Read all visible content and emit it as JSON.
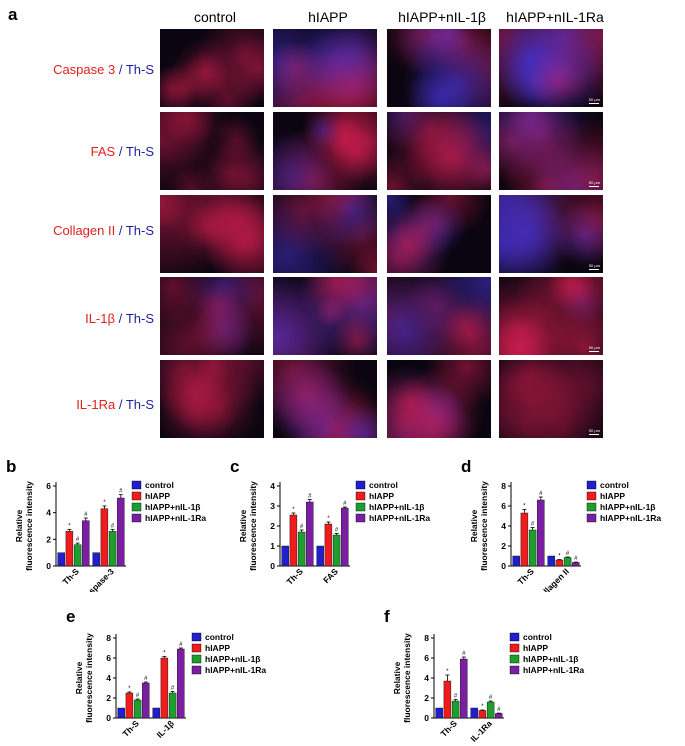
{
  "panel_a": {
    "letter": "a",
    "columns": [
      "control",
      "hIAPP",
      "hIAPP+nIL-1β",
      "hIAPP+nIL-1Ra"
    ],
    "rows": [
      {
        "stain": "Caspase 3",
        "sep": " / ",
        "counter": "Th-S"
      },
      {
        "stain": "FAS",
        "sep": " / ",
        "counter": "Th-S"
      },
      {
        "stain": "Collagen II",
        "sep": " / ",
        "counter": "Th-S"
      },
      {
        "stain": "IL-1β",
        "sep": " / ",
        "counter": "Th-S"
      },
      {
        "stain": "IL-1Ra",
        "sep": " / ",
        "counter": "Th-S"
      }
    ],
    "scale_bar_label": "50 μm",
    "colors": {
      "stain": "#e0201e",
      "counterstain": "#1f1f9e",
      "tile_bg": "#0a0510"
    }
  },
  "series_colors": [
    "#1f1fcc",
    "#ee1c1c",
    "#1e9e2e",
    "#7b1fa2"
  ],
  "chart_data": [
    {
      "panel": "b",
      "type": "bar",
      "ylabel": "Relative fluorescence intensity",
      "ylim": [
        0,
        6
      ],
      "yticks": [
        0,
        2,
        4,
        6
      ],
      "categories": [
        "Th-S",
        "Caspase-3"
      ],
      "series": [
        {
          "name": "control",
          "values": [
            1.0,
            1.0
          ],
          "errors": [
            0,
            0
          ],
          "marks": [
            "",
            ""
          ]
        },
        {
          "name": "hIAPP",
          "values": [
            2.6,
            4.3
          ],
          "errors": [
            0.15,
            0.2
          ],
          "marks": [
            "*",
            "*"
          ]
        },
        {
          "name": "hIAPP+nIL-1β",
          "values": [
            1.6,
            2.6
          ],
          "errors": [
            0.12,
            0.15
          ],
          "marks": [
            "#",
            "#"
          ]
        },
        {
          "name": "hIAPP+nIL-1Ra",
          "values": [
            3.4,
            5.1
          ],
          "errors": [
            0.2,
            0.25
          ],
          "marks": [
            "#",
            "#"
          ]
        }
      ]
    },
    {
      "panel": "c",
      "type": "bar",
      "ylabel": "Relative fluorescence intensity",
      "ylim": [
        0,
        4
      ],
      "yticks": [
        0,
        1,
        2,
        3,
        4
      ],
      "categories": [
        "Th-S",
        "FAS"
      ],
      "series": [
        {
          "name": "control",
          "values": [
            1.0,
            1.0
          ],
          "errors": [
            0,
            0
          ],
          "marks": [
            "",
            ""
          ]
        },
        {
          "name": "hIAPP",
          "values": [
            2.55,
            2.1
          ],
          "errors": [
            0.1,
            0.1
          ],
          "marks": [
            "*",
            "*"
          ]
        },
        {
          "name": "hIAPP+nIL-1β",
          "values": [
            1.7,
            1.55
          ],
          "errors": [
            0.1,
            0.08
          ],
          "marks": [
            "#",
            "#"
          ]
        },
        {
          "name": "hIAPP+nIL-1Ra",
          "values": [
            3.2,
            2.9
          ],
          "errors": [
            0.12,
            0.05
          ],
          "marks": [
            "#",
            "#"
          ]
        }
      ]
    },
    {
      "panel": "d",
      "type": "bar",
      "ylabel": "Relative fluorescence intensity",
      "ylim": [
        0,
        8
      ],
      "yticks": [
        0,
        2,
        4,
        6,
        8
      ],
      "categories": [
        "Th-S",
        "Collagen II"
      ],
      "series": [
        {
          "name": "control",
          "values": [
            1.0,
            1.0
          ],
          "errors": [
            0,
            0
          ],
          "marks": [
            "",
            ""
          ]
        },
        {
          "name": "hIAPP",
          "values": [
            5.3,
            0.6
          ],
          "errors": [
            0.35,
            0.05
          ],
          "marks": [
            "*",
            "*"
          ]
        },
        {
          "name": "hIAPP+nIL-1β",
          "values": [
            3.6,
            0.85
          ],
          "errors": [
            0.25,
            0.05
          ],
          "marks": [
            "#",
            "#"
          ]
        },
        {
          "name": "hIAPP+nIL-1Ra",
          "values": [
            6.6,
            0.35
          ],
          "errors": [
            0.3,
            0.04
          ],
          "marks": [
            "#",
            "#"
          ]
        }
      ]
    },
    {
      "panel": "e",
      "type": "bar",
      "ylabel": "Relative fluorescence intensity",
      "ylim": [
        0,
        8
      ],
      "yticks": [
        0,
        2,
        4,
        6,
        8
      ],
      "categories": [
        "Th-S",
        "IL-1β"
      ],
      "series": [
        {
          "name": "control",
          "values": [
            1.0,
            1.0
          ],
          "errors": [
            0,
            0
          ],
          "marks": [
            "",
            ""
          ]
        },
        {
          "name": "hIAPP",
          "values": [
            2.5,
            6.0
          ],
          "errors": [
            0.1,
            0.15
          ],
          "marks": [
            "*",
            "*"
          ]
        },
        {
          "name": "hIAPP+nIL-1β",
          "values": [
            1.8,
            2.5
          ],
          "errors": [
            0.1,
            0.15
          ],
          "marks": [
            "#",
            "#"
          ]
        },
        {
          "name": "hIAPP+nIL-1Ra",
          "values": [
            3.5,
            6.9
          ],
          "errors": [
            0.1,
            0.1
          ],
          "marks": [
            "#",
            "#"
          ]
        }
      ]
    },
    {
      "panel": "f",
      "type": "bar",
      "ylabel": "Relative fluorescence intensity",
      "ylim": [
        0,
        8
      ],
      "yticks": [
        0,
        2,
        4,
        6,
        8
      ],
      "categories": [
        "Th-S",
        "IL-1Ra"
      ],
      "series": [
        {
          "name": "control",
          "values": [
            1.0,
            1.0
          ],
          "errors": [
            0,
            0
          ],
          "marks": [
            "",
            ""
          ]
        },
        {
          "name": "hIAPP",
          "values": [
            3.7,
            0.75
          ],
          "errors": [
            0.6,
            0.05
          ],
          "marks": [
            "*",
            "*"
          ]
        },
        {
          "name": "hIAPP+nIL-1β",
          "values": [
            1.7,
            1.6
          ],
          "errors": [
            0.15,
            0.1
          ],
          "marks": [
            "#",
            "#"
          ]
        },
        {
          "name": "hIAPP+nIL-1Ra",
          "values": [
            5.9,
            0.45
          ],
          "errors": [
            0.2,
            0.04
          ],
          "marks": [
            "#",
            "#"
          ]
        }
      ]
    }
  ]
}
